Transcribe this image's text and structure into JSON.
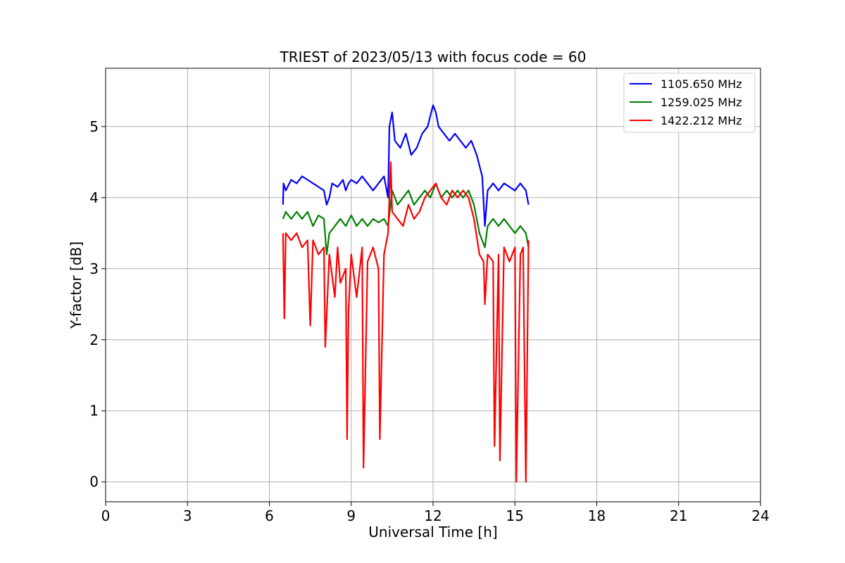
{
  "chart_data": {
    "type": "line",
    "title": "TRIEST of 2023/05/13 with focus code = 60",
    "xlabel": "Universal Time [h]",
    "ylabel": "Y-factor [dB]",
    "xlim": [
      0,
      24
    ],
    "ylim": [
      -0.28,
      5.82
    ],
    "xticks": [
      0,
      3,
      6,
      9,
      12,
      15,
      18,
      21,
      24
    ],
    "yticks": [
      0,
      1,
      2,
      3,
      4,
      5
    ],
    "grid": true,
    "legend_position": "top-right",
    "series": [
      {
        "name": "1105.650 MHz",
        "color": "#0000ff",
        "x": [
          6.5,
          6.52,
          6.6,
          6.8,
          7.0,
          7.2,
          7.4,
          7.6,
          7.8,
          8.0,
          8.1,
          8.2,
          8.3,
          8.5,
          8.7,
          8.8,
          8.9,
          9.0,
          9.2,
          9.4,
          9.6,
          9.8,
          10.0,
          10.2,
          10.35,
          10.4,
          10.5,
          10.6,
          10.8,
          11.0,
          11.2,
          11.4,
          11.6,
          11.8,
          12.0,
          12.1,
          12.2,
          12.4,
          12.6,
          12.8,
          13.0,
          13.2,
          13.4,
          13.6,
          13.8,
          13.9,
          14.0,
          14.2,
          14.4,
          14.6,
          14.8,
          15.0,
          15.2,
          15.4,
          15.5
        ],
        "y": [
          3.9,
          4.2,
          4.1,
          4.25,
          4.2,
          4.3,
          4.25,
          4.2,
          4.15,
          4.1,
          3.9,
          4.0,
          4.2,
          4.15,
          4.25,
          4.1,
          4.2,
          4.25,
          4.2,
          4.3,
          4.2,
          4.1,
          4.2,
          4.3,
          4.0,
          5.0,
          5.2,
          4.8,
          4.7,
          4.9,
          4.6,
          4.7,
          4.9,
          5.0,
          5.3,
          5.2,
          5.0,
          4.9,
          4.8,
          4.9,
          4.8,
          4.7,
          4.8,
          4.6,
          4.3,
          3.6,
          4.1,
          4.2,
          4.1,
          4.2,
          4.15,
          4.1,
          4.2,
          4.1,
          3.9
        ]
      },
      {
        "name": "1259.025 MHz",
        "color": "#008000",
        "x": [
          6.5,
          6.6,
          6.8,
          7.0,
          7.2,
          7.4,
          7.6,
          7.8,
          8.0,
          8.1,
          8.2,
          8.4,
          8.6,
          8.8,
          9.0,
          9.2,
          9.4,
          9.6,
          9.8,
          10.0,
          10.2,
          10.35,
          10.5,
          10.7,
          10.9,
          11.1,
          11.3,
          11.5,
          11.7,
          11.9,
          12.1,
          12.3,
          12.5,
          12.7,
          12.9,
          13.1,
          13.3,
          13.5,
          13.7,
          13.9,
          14.0,
          14.2,
          14.4,
          14.6,
          14.8,
          15.0,
          15.2,
          15.4,
          15.5
        ],
        "y": [
          3.7,
          3.8,
          3.7,
          3.8,
          3.7,
          3.8,
          3.6,
          3.75,
          3.7,
          3.2,
          3.5,
          3.6,
          3.7,
          3.6,
          3.75,
          3.6,
          3.7,
          3.6,
          3.7,
          3.65,
          3.7,
          3.6,
          4.1,
          3.9,
          4.0,
          4.1,
          3.9,
          4.0,
          4.1,
          4.0,
          4.2,
          4.0,
          4.1,
          4.0,
          4.1,
          4.0,
          4.1,
          3.9,
          3.5,
          3.3,
          3.6,
          3.7,
          3.6,
          3.7,
          3.6,
          3.5,
          3.6,
          3.5,
          3.3
        ]
      },
      {
        "name": "1422.212 MHz",
        "color": "#ff0000",
        "x": [
          6.5,
          6.55,
          6.6,
          6.8,
          7.0,
          7.2,
          7.4,
          7.5,
          7.6,
          7.8,
          8.0,
          8.05,
          8.2,
          8.4,
          8.5,
          8.6,
          8.8,
          8.85,
          8.9,
          9.0,
          9.2,
          9.4,
          9.45,
          9.6,
          9.8,
          10.0,
          10.05,
          10.2,
          10.35,
          10.45,
          10.5,
          10.7,
          10.9,
          11.1,
          11.3,
          11.5,
          11.7,
          11.9,
          12.1,
          12.3,
          12.5,
          12.7,
          12.9,
          13.1,
          13.3,
          13.5,
          13.7,
          13.85,
          13.9,
          14.0,
          14.2,
          14.25,
          14.4,
          14.45,
          14.6,
          14.8,
          15.0,
          15.05,
          15.2,
          15.3,
          15.4,
          15.5
        ],
        "y": [
          3.5,
          2.3,
          3.5,
          3.4,
          3.5,
          3.3,
          3.4,
          2.2,
          3.4,
          3.2,
          3.3,
          1.9,
          3.2,
          2.6,
          3.3,
          2.8,
          3.0,
          0.6,
          2.4,
          3.2,
          2.6,
          3.3,
          0.2,
          3.1,
          3.3,
          3.0,
          0.6,
          3.2,
          3.5,
          4.5,
          3.8,
          3.7,
          3.6,
          3.9,
          3.7,
          3.8,
          4.0,
          4.1,
          4.2,
          4.0,
          3.9,
          4.1,
          4.0,
          4.1,
          4.0,
          3.7,
          3.2,
          3.1,
          2.5,
          3.2,
          3.1,
          0.5,
          3.2,
          0.3,
          3.3,
          3.1,
          3.3,
          0.0,
          3.2,
          3.3,
          0.0,
          3.4
        ]
      }
    ]
  }
}
